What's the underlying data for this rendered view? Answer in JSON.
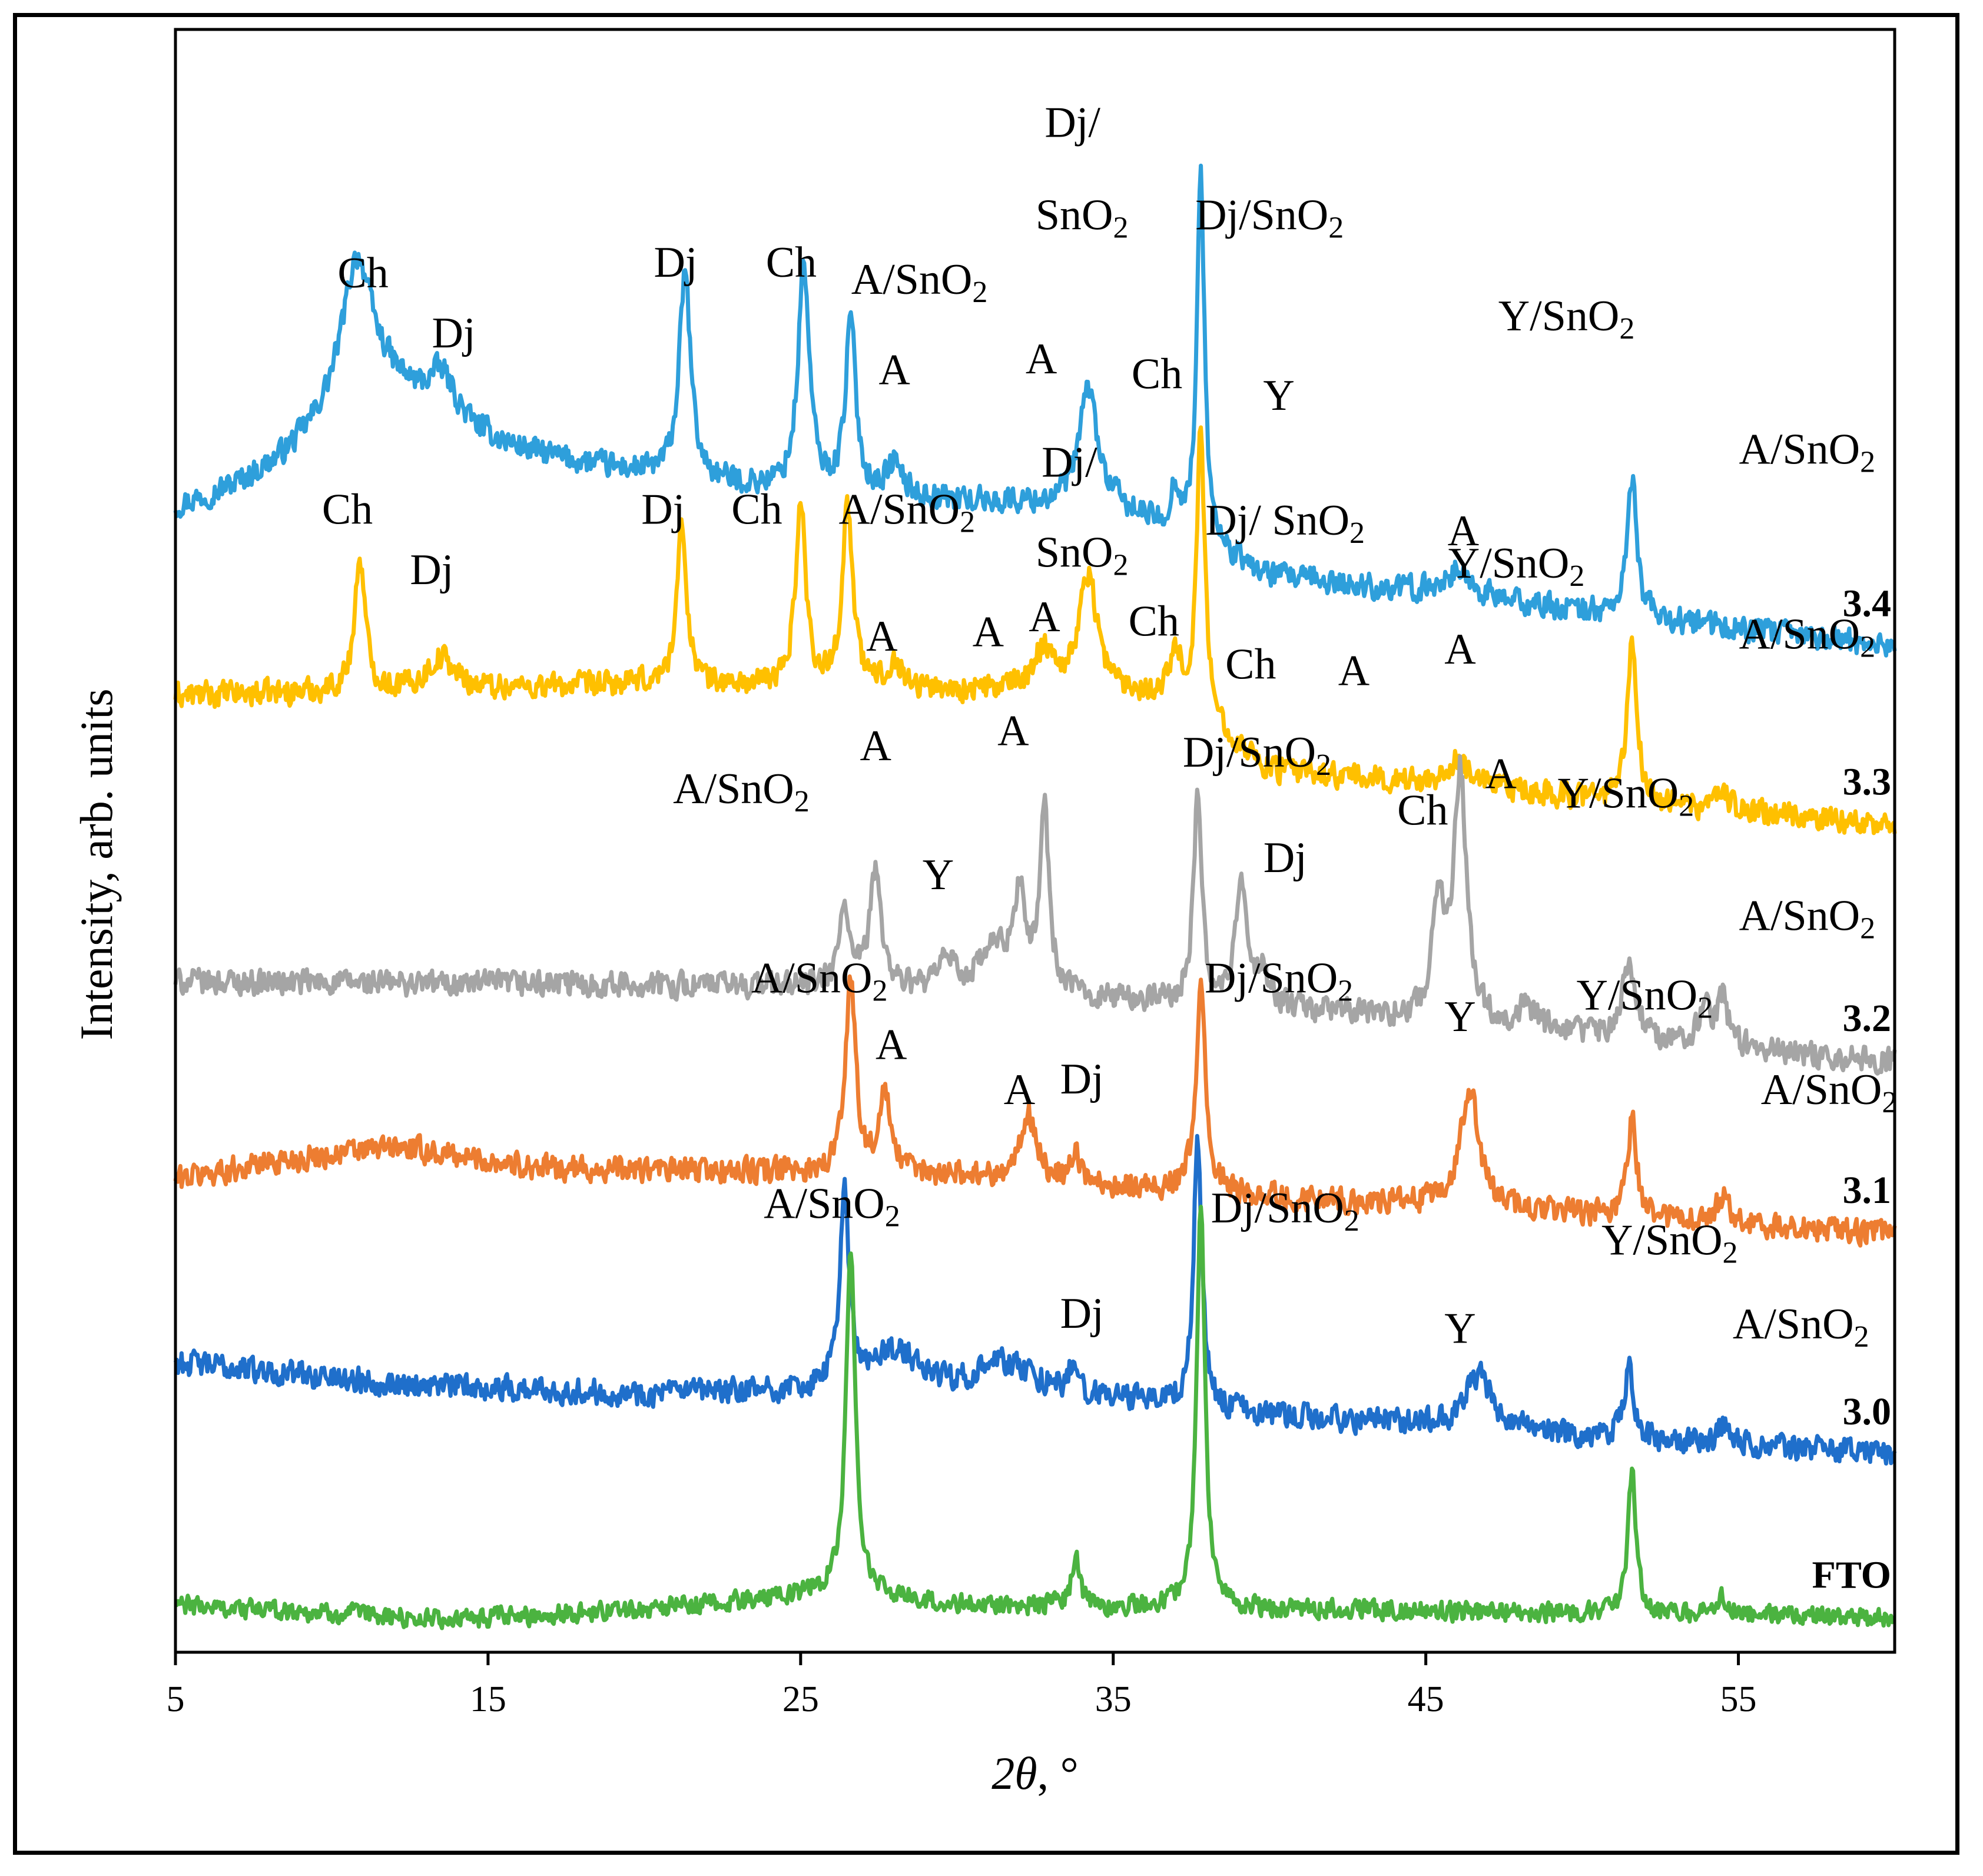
{
  "chart_data": {
    "type": "line",
    "title": "",
    "xlabel_symbol": "2θ",
    "xlabel_unit": ", °",
    "ylabel": "Intensity, arb. units",
    "xlim": [
      5,
      60
    ],
    "x_ticks": [
      5,
      15,
      25,
      35,
      45,
      55
    ],
    "y_ticks": [],
    "grid": false,
    "legend": "none (series labelled inline at right end)",
    "series": [
      {
        "name": "3.4",
        "color": "#2E9FDB",
        "baseline": 5.35,
        "noise": 0.085,
        "edge": [
          [
            5,
            5.28
          ],
          [
            14,
            5.55
          ],
          [
            25,
            5.38
          ],
          [
            35,
            5.32
          ],
          [
            40,
            5.0
          ],
          [
            60,
            4.68
          ]
        ],
        "peaks": [
          [
            10.8,
            0.6,
            0.55
          ],
          [
            11.2,
            0.45,
            2.2
          ],
          [
            13.5,
            0.2,
            0.5
          ],
          [
            21.3,
            0.95,
            0.22
          ],
          [
            25.1,
            1.05,
            0.22
          ],
          [
            26.6,
            0.8,
            0.2
          ],
          [
            28.0,
            0.15,
            0.3
          ],
          [
            34.2,
            0.55,
            0.35
          ],
          [
            37.0,
            0.2,
            0.18
          ],
          [
            37.8,
            1.7,
            0.15
          ],
          [
            46.0,
            0.12,
            0.6
          ],
          [
            51.6,
            0.65,
            0.18
          ]
        ]
      },
      {
        "name": "3.3",
        "color": "#FFC000",
        "baseline": 4.45,
        "noise": 0.085,
        "edge": [
          [
            5,
            4.45
          ],
          [
            20,
            4.5
          ],
          [
            37,
            4.45
          ],
          [
            40,
            4.1
          ],
          [
            60,
            3.85
          ]
        ],
        "peaks": [
          [
            10.9,
            0.62,
            0.2
          ],
          [
            13.5,
            0.15,
            0.5
          ],
          [
            21.2,
            0.72,
            0.2
          ],
          [
            25.0,
            0.85,
            0.2
          ],
          [
            26.5,
            0.85,
            0.2
          ],
          [
            28.0,
            0.12,
            0.3
          ],
          [
            32.8,
            0.2,
            0.4
          ],
          [
            34.2,
            0.55,
            0.35
          ],
          [
            37.0,
            0.2,
            0.18
          ],
          [
            37.8,
            1.35,
            0.15
          ],
          [
            46.0,
            0.12,
            0.5
          ],
          [
            51.6,
            0.75,
            0.18
          ],
          [
            54.5,
            0.1,
            0.2
          ]
        ]
      },
      {
        "name": "3.2",
        "color": "#A5A5A5",
        "baseline": 3.12,
        "noise": 0.085,
        "edge": [
          [
            5,
            3.12
          ],
          [
            25,
            3.1
          ],
          [
            40,
            3.0
          ],
          [
            60,
            2.75
          ]
        ],
        "peaks": [
          [
            26.4,
            0.38,
            0.18
          ],
          [
            27.4,
            0.55,
            0.22
          ],
          [
            29.7,
            0.15,
            0.25
          ],
          [
            31.2,
            0.2,
            0.6
          ],
          [
            32.0,
            0.45,
            0.2
          ],
          [
            32.8,
            0.85,
            0.18
          ],
          [
            37.7,
            0.95,
            0.16
          ],
          [
            39.1,
            0.6,
            0.2
          ],
          [
            39.8,
            0.15,
            0.2
          ],
          [
            45.4,
            0.55,
            0.22
          ],
          [
            46.1,
            1.15,
            0.25
          ],
          [
            48.2,
            0.1,
            0.3
          ],
          [
            51.5,
            0.35,
            0.25
          ],
          [
            53.9,
            0.18,
            0.2
          ],
          [
            54.5,
            0.22,
            0.2
          ]
        ]
      },
      {
        "name": "3.1",
        "color": "#ED7D31",
        "baseline": 2.2,
        "noise": 0.085,
        "edge": [
          [
            5,
            2.2
          ],
          [
            8,
            2.28
          ],
          [
            12,
            2.35
          ],
          [
            17,
            2.25
          ],
          [
            30,
            2.22
          ],
          [
            40,
            2.12
          ],
          [
            60,
            1.95
          ]
        ],
        "peaks": [
          [
            26.6,
            0.9,
            0.2
          ],
          [
            27.7,
            0.35,
            0.22
          ],
          [
            32.3,
            0.3,
            0.3
          ],
          [
            33.8,
            0.15,
            0.15
          ],
          [
            37.8,
            0.95,
            0.18
          ],
          [
            46.4,
            0.55,
            0.35
          ],
          [
            51.6,
            0.45,
            0.18
          ],
          [
            54.5,
            0.12,
            0.25
          ]
        ]
      },
      {
        "name": "3.0",
        "color": "#1F6FCB",
        "baseline": 1.25,
        "noise": 0.085,
        "edge": [
          [
            5,
            1.35
          ],
          [
            12,
            1.25
          ],
          [
            20,
            1.2
          ],
          [
            32,
            1.22
          ],
          [
            40,
            1.1
          ],
          [
            60,
            0.92
          ]
        ],
        "peaks": [
          [
            26.4,
            0.9,
            0.18
          ],
          [
            28.0,
            0.18,
            0.9
          ],
          [
            31.5,
            0.12,
            1.0
          ],
          [
            33.7,
            0.12,
            0.15
          ],
          [
            37.7,
            1.25,
            0.16
          ],
          [
            46.7,
            0.25,
            0.5
          ],
          [
            51.5,
            0.38,
            0.15
          ],
          [
            54.5,
            0.1,
            0.2
          ]
        ]
      },
      {
        "name": "FTO",
        "color": "#4BB340",
        "baseline": 0.2,
        "noise": 0.065,
        "edge": [
          [
            5,
            0.22
          ],
          [
            14,
            0.15
          ],
          [
            22,
            0.22
          ],
          [
            26,
            0.28
          ],
          [
            30,
            0.22
          ],
          [
            40,
            0.2
          ],
          [
            60,
            0.16
          ]
        ],
        "peaks": [
          [
            26.6,
            1.6,
            0.18
          ],
          [
            33.8,
            0.25,
            0.15
          ],
          [
            37.8,
            1.88,
            0.16
          ],
          [
            51.6,
            0.68,
            0.15
          ],
          [
            54.5,
            0.08,
            0.2
          ]
        ]
      }
    ],
    "annotations": [
      {
        "text": "Ch",
        "x": 11.0,
        "level": 6.35
      },
      {
        "text": "Dj",
        "x": 13.9,
        "level": 6.07
      },
      {
        "text": "Dj",
        "x": 21.0,
        "level": 6.4
      },
      {
        "text": "Ch",
        "x": 24.7,
        "level": 6.4
      },
      {
        "text": "A/SnO",
        "sub": "2",
        "x": 28.8,
        "level": 6.32
      },
      {
        "text": "A",
        "x": 28.0,
        "level": 5.9
      },
      {
        "text": "Dj/",
        "x": 33.7,
        "level": 7.05
      },
      {
        "text": "SnO",
        "sub": "2",
        "x": 34.0,
        "level": 6.62
      },
      {
        "text": "A",
        "x": 32.7,
        "level": 5.95
      },
      {
        "text": "Dj/SnO",
        "sub": "2",
        "x": 40.0,
        "level": 6.62
      },
      {
        "text": "Ch",
        "x": 36.4,
        "level": 5.88
      },
      {
        "text": "Y",
        "x": 40.3,
        "level": 5.78
      },
      {
        "text": "Y/SnO",
        "sub": "2",
        "x": 49.5,
        "level": 6.15
      },
      {
        "text": "A/SnO",
        "sub": "2",
        "x": 57.2,
        "level": 5.53
      },
      {
        "text": "A",
        "x": 46.2,
        "level": 5.15
      },
      {
        "text": "Ch",
        "x": 10.5,
        "level": 5.25
      },
      {
        "text": "Dj",
        "x": 13.2,
        "level": 4.97
      },
      {
        "text": "Dj",
        "x": 20.6,
        "level": 5.25
      },
      {
        "text": "Ch",
        "x": 23.6,
        "level": 5.25
      },
      {
        "text": "A/SnO",
        "sub": "2",
        "x": 28.4,
        "level": 5.25
      },
      {
        "text": "A",
        "x": 27.6,
        "level": 4.66
      },
      {
        "text": "A",
        "x": 31.0,
        "level": 4.68
      },
      {
        "text": "A",
        "x": 32.8,
        "level": 4.75
      },
      {
        "text": "Dj/",
        "x": 33.6,
        "level": 5.47
      },
      {
        "text": "SnO",
        "sub": "2",
        "x": 34.0,
        "level": 5.05
      },
      {
        "text": "Dj/ SnO",
        "sub": "2",
        "x": 40.5,
        "level": 5.2
      },
      {
        "text": "Ch",
        "x": 36.3,
        "level": 4.73
      },
      {
        "text": "Ch",
        "x": 39.4,
        "level": 4.53
      },
      {
        "text": "A",
        "x": 42.7,
        "level": 4.5
      },
      {
        "text": "A",
        "x": 46.1,
        "level": 4.6
      },
      {
        "text": "Y/SnO",
        "sub": "2",
        "x": 47.9,
        "level": 5.0
      },
      {
        "text": "A/SnO",
        "sub": "2",
        "x": 57.2,
        "level": 4.67
      },
      {
        "text": "A/SnO",
        "sub": "2",
        "x": 23.1,
        "level": 3.95
      },
      {
        "text": "A",
        "x": 27.4,
        "level": 4.15
      },
      {
        "text": "A",
        "x": 31.8,
        "level": 4.22
      },
      {
        "text": "Y",
        "x": 29.4,
        "level": 3.55
      },
      {
        "text": "Dj/SnO",
        "sub": "2",
        "x": 39.6,
        "level": 4.12
      },
      {
        "text": "Dj",
        "x": 40.5,
        "level": 3.63
      },
      {
        "text": "Ch",
        "x": 44.9,
        "level": 3.85
      },
      {
        "text": "A",
        "x": 47.4,
        "level": 4.02
      },
      {
        "text": "Y/SnO",
        "sub": "2",
        "x": 51.4,
        "level": 3.93
      },
      {
        "text": "A/SnO",
        "sub": "2",
        "x": 57.2,
        "level": 3.36
      },
      {
        "text": "A/SnO",
        "sub": "2",
        "x": 25.6,
        "level": 3.07
      },
      {
        "text": "A",
        "x": 27.9,
        "level": 2.76
      },
      {
        "text": "A",
        "x": 32.0,
        "level": 2.55
      },
      {
        "text": "Dj",
        "x": 34.0,
        "level": 2.6
      },
      {
        "text": "Dj/SnO",
        "sub": "2",
        "x": 40.3,
        "level": 3.07
      },
      {
        "text": "Y",
        "x": 46.1,
        "level": 2.89
      },
      {
        "text": "Y/SnO",
        "sub": "2",
        "x": 52.0,
        "level": 2.99
      },
      {
        "text": "A/SnO",
        "sub": "2",
        "x": 57.9,
        "level": 2.55
      },
      {
        "text": "A/SnO",
        "sub": "2",
        "x": 26.0,
        "level": 2.02
      },
      {
        "text": "Dj/SnO",
        "sub": "2",
        "x": 40.5,
        "level": 2.0
      },
      {
        "text": "Dj",
        "x": 34.0,
        "level": 1.51
      },
      {
        "text": "Y",
        "x": 46.1,
        "level": 1.44
      },
      {
        "text": "Y/SnO",
        "sub": "2",
        "x": 52.8,
        "level": 1.85
      },
      {
        "text": "A/SnO",
        "sub": "2",
        "x": 57.0,
        "level": 1.46
      }
    ]
  }
}
